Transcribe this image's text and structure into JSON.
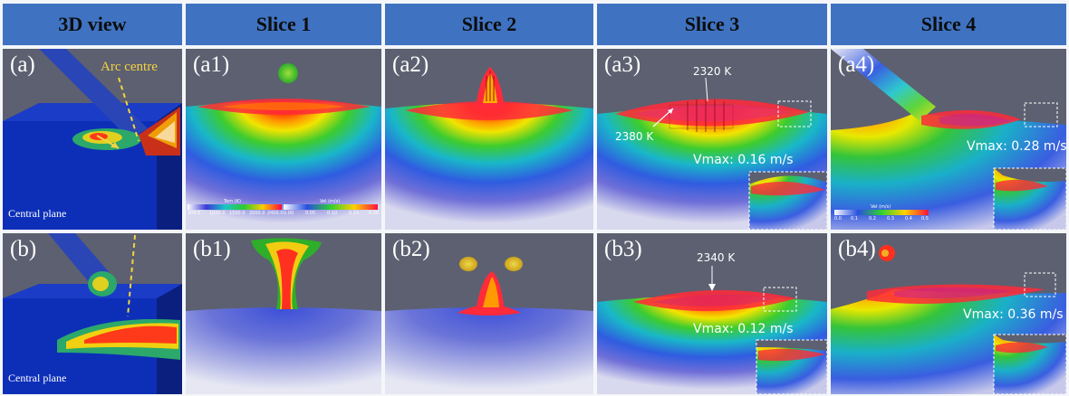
{
  "header": {
    "columns": [
      {
        "label": "3D view"
      },
      {
        "label": "Slice 1"
      },
      {
        "label": "Slice 2"
      },
      {
        "label": "Slice 3"
      },
      {
        "label": "Slice 4"
      }
    ]
  },
  "rows": [
    {
      "panels": [
        {
          "label": "(a)",
          "arc_label": "Arc centre",
          "caption": "Central plane"
        },
        {
          "label": "(a1)"
        },
        {
          "label": "(a2)"
        },
        {
          "label": "(a3)",
          "annotation_upper": "2320 K",
          "annotation_lower": "2380 K",
          "vmax": "Vmax: 0.16 m/s"
        },
        {
          "label": "(a4)",
          "vmax": "Vmax: 0.28 m/s"
        }
      ]
    },
    {
      "panels": [
        {
          "label": "(b)",
          "caption": "Central plane"
        },
        {
          "label": "(b1)"
        },
        {
          "label": "(b2)"
        },
        {
          "label": "(b3)",
          "annotation_upper": "2340 K",
          "vmax": "Vmax: 0.12 m/s"
        },
        {
          "label": "(b4)",
          "vmax": "Vmax: 0.36 m/s"
        }
      ]
    }
  ],
  "colorbars": {
    "temperature": {
      "title": "Tem (K)",
      "ticks": [
        "300.0",
        "1000.0",
        "1500.0",
        "2000.0",
        "2400.0"
      ]
    },
    "velocity_a1": {
      "title": "Vel (m/s)",
      "ticks": [
        "0.00",
        "0.05",
        "0.10",
        "0.15",
        "0.20"
      ]
    },
    "velocity_a4": {
      "title": "Vel (m/s)",
      "ticks": [
        "0.0",
        "0.1",
        "0.2",
        "0.3",
        "0.4",
        "0.5"
      ]
    }
  },
  "colors": {
    "header_bg": "#3f73c2",
    "background": "#5d6070",
    "arc_label": "#f5d442"
  }
}
